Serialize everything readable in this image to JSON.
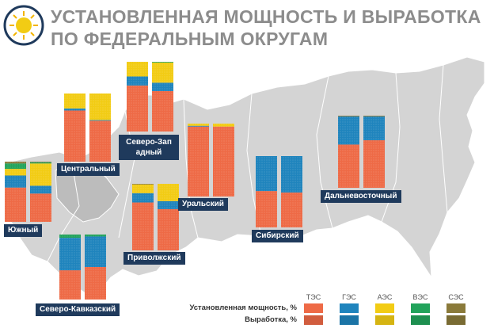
{
  "title": {
    "line1": "УСТАНОВЛЕННАЯ МОЩНОСТЬ И ВЫРАБОТКА",
    "line2": "ПО ФЕДЕРАЛЬНЫМ ОКРУГАМ"
  },
  "colors": {
    "ТЭС": "#ee6a46",
    "ГЭС": "#1f84bd",
    "АЭС": "#f2cc14",
    "ВЭС": "#22a35b",
    "СЭС": "#8a7a3a",
    "label_bg": "#1f3a5c",
    "map": "#d4d4d4",
    "title": "#8c8c8c"
  },
  "legend": {
    "categories": [
      "ТЭС",
      "ГЭС",
      "АЭС",
      "ВЭС",
      "СЭС"
    ],
    "row_installed": "Установленная мощность, %",
    "row_generation": "Выработка, %"
  },
  "chart_data": {
    "type": "bar",
    "stacked": true,
    "unit": "%",
    "stack_order": [
      "ТЭС",
      "ГЭС",
      "АЭС",
      "ВЭС",
      "СЭС"
    ],
    "series": [
      "Установленная мощность, %",
      "Выработка, %"
    ],
    "districts": [
      {
        "name": "Южный",
        "installed": {
          "ТЭС": 57,
          "ГЭС": 20,
          "АЭС": 11,
          "ВЭС": 9,
          "СЭС": 3
        },
        "generation": {
          "ТЭС": 47,
          "ГЭС": 13,
          "АЭС": 37,
          "ВЭС": 2,
          "СЭС": 1
        }
      },
      {
        "name": "Центральный",
        "installed": {
          "ТЭС": 75,
          "ГЭС": 3,
          "АЭС": 22,
          "ВЭС": 0,
          "СЭС": 0
        },
        "generation": {
          "ТЭС": 60,
          "ГЭС": 1,
          "АЭС": 39,
          "ВЭС": 0,
          "СЭС": 0
        }
      },
      {
        "name": "Северо-Западный",
        "installed": {
          "ТЭС": 66,
          "ГЭС": 13,
          "АЭС": 21,
          "ВЭС": 0,
          "СЭС": 0
        },
        "generation": {
          "ТЭС": 58,
          "ГЭС": 12,
          "АЭС": 29,
          "ВЭС": 1,
          "СЭС": 0
        }
      },
      {
        "name": "Северо-Кавказский",
        "installed": {
          "ТЭС": 45,
          "ГЭС": 50,
          "АЭС": 0,
          "ВЭС": 5,
          "СЭС": 0
        },
        "generation": {
          "ТЭС": 50,
          "ГЭС": 47,
          "АЭС": 0,
          "ВЭС": 3,
          "СЭС": 0
        }
      },
      {
        "name": "Приволжский",
        "installed": {
          "ТЭС": 72,
          "ГЭС": 14,
          "АЭС": 13,
          "ВЭС": 0,
          "СЭС": 1
        },
        "generation": {
          "ТЭС": 62,
          "ГЭС": 12,
          "АЭС": 26,
          "ВЭС": 0,
          "СЭС": 0
        }
      },
      {
        "name": "Уральский",
        "installed": {
          "ТЭС": 96,
          "ГЭС": 1,
          "АЭС": 3,
          "ВЭС": 0,
          "СЭС": 0
        },
        "generation": {
          "ТЭС": 96,
          "ГЭС": 0,
          "АЭС": 4,
          "ВЭС": 0,
          "СЭС": 0
        }
      },
      {
        "name": "Сибирский",
        "installed": {
          "ТЭС": 51,
          "ГЭС": 49,
          "АЭС": 0,
          "ВЭС": 0,
          "СЭС": 0
        },
        "generation": {
          "ТЭС": 49,
          "ГЭС": 51,
          "АЭС": 0,
          "ВЭС": 0,
          "СЭС": 0
        }
      },
      {
        "name": "Дальневосточный",
        "installed": {
          "ТЭС": 60,
          "ГЭС": 39,
          "АЭС": 0,
          "ВЭС": 0,
          "СЭС": 1
        },
        "generation": {
          "ТЭС": 66,
          "ГЭС": 33,
          "АЭС": 0,
          "ВЭС": 0,
          "СЭС": 1
        }
      }
    ]
  }
}
